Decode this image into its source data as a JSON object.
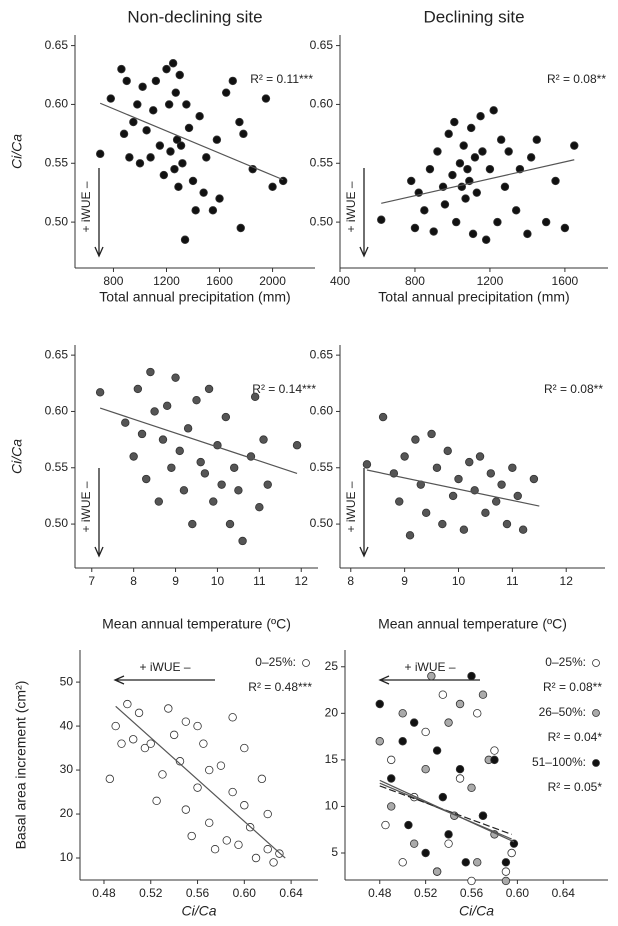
{
  "chart_data": [
    {
      "type": "scatter",
      "title": "Non-declining site",
      "xlabel": "Total annual precipitation (mm)",
      "ylabel": "Ci/Ca",
      "arrow_label": "+ iWUE –",
      "xlim": [
        510,
        2320
      ],
      "ylim": [
        0.461,
        0.659
      ],
      "xticks": [
        800,
        1200,
        1600,
        2000
      ],
      "yticks": [
        {
          "value": 0.5,
          "label": "0.50"
        },
        0.55,
        {
          "value": 0.6,
          "label": "0.60"
        },
        0.65
      ],
      "series": [
        {
          "color": "#111111",
          "r2": "R² = 0.11***",
          "x": [
            700,
            780,
            860,
            880,
            900,
            920,
            950,
            980,
            1000,
            1020,
            1050,
            1080,
            1100,
            1120,
            1150,
            1180,
            1200,
            1220,
            1230,
            1250,
            1260,
            1270,
            1280,
            1290,
            1300,
            1310,
            1320,
            1340,
            1350,
            1370,
            1400,
            1420,
            1450,
            1480,
            1500,
            1550,
            1580,
            1600,
            1650,
            1700,
            1750,
            1760,
            1780,
            1850,
            1950,
            2000,
            2080
          ],
          "y": [
            0.558,
            0.605,
            0.63,
            0.575,
            0.62,
            0.555,
            0.585,
            0.6,
            0.55,
            0.615,
            0.578,
            0.555,
            0.595,
            0.62,
            0.565,
            0.54,
            0.63,
            0.6,
            0.56,
            0.635,
            0.545,
            0.61,
            0.57,
            0.53,
            0.625,
            0.565,
            0.55,
            0.485,
            0.6,
            0.58,
            0.535,
            0.51,
            0.59,
            0.525,
            0.555,
            0.51,
            0.57,
            0.52,
            0.61,
            0.62,
            0.585,
            0.495,
            0.575,
            0.545,
            0.605,
            0.53,
            0.535
          ],
          "fit": {
            "x": [
              700,
              2080
            ],
            "y": [
              0.601,
              0.536
            ]
          }
        }
      ]
    },
    {
      "type": "scatter",
      "title": "Declining site",
      "xlabel": "Total annual precipitation (mm)",
      "arrow_label": "+ iWUE –",
      "xlim": [
        400,
        1830
      ],
      "ylim": [
        0.461,
        0.659
      ],
      "xticks": [
        400,
        800,
        1200,
        1600
      ],
      "yticks": [
        {
          "value": 0.5,
          "label": "0.50"
        },
        0.55,
        {
          "value": 0.6,
          "label": "0.60"
        },
        0.65
      ],
      "series": [
        {
          "color": "#111111",
          "r2": "R² = 0.08**",
          "x": [
            620,
            780,
            800,
            820,
            850,
            880,
            900,
            920,
            950,
            960,
            980,
            1000,
            1010,
            1020,
            1040,
            1050,
            1060,
            1070,
            1080,
            1090,
            1100,
            1110,
            1120,
            1130,
            1150,
            1160,
            1180,
            1200,
            1220,
            1240,
            1260,
            1280,
            1300,
            1340,
            1360,
            1400,
            1420,
            1450,
            1500,
            1550,
            1600,
            1650
          ],
          "y": [
            0.502,
            0.535,
            0.495,
            0.525,
            0.51,
            0.545,
            0.492,
            0.56,
            0.53,
            0.515,
            0.575,
            0.54,
            0.585,
            0.5,
            0.55,
            0.53,
            0.565,
            0.52,
            0.545,
            0.535,
            0.58,
            0.49,
            0.555,
            0.525,
            0.59,
            0.56,
            0.485,
            0.545,
            0.595,
            0.5,
            0.57,
            0.53,
            0.56,
            0.51,
            0.545,
            0.49,
            0.555,
            0.57,
            0.5,
            0.535,
            0.495,
            0.565
          ],
          "fit": {
            "x": [
              620,
              1650
            ],
            "y": [
              0.516,
              0.553
            ]
          }
        }
      ]
    },
    {
      "type": "scatter",
      "xlabel": "Mean annual temperature (ºC)",
      "ylabel": "Ci/Ca",
      "arrow_label": "+ iWUE –",
      "xlim": [
        6.6,
        12.4
      ],
      "ylim": [
        0.461,
        0.659
      ],
      "xticks": [
        7,
        8,
        9,
        10,
        11,
        12
      ],
      "yticks": [
        {
          "value": 0.5,
          "label": "0.50"
        },
        0.55,
        {
          "value": 0.6,
          "label": "0.60"
        },
        0.65
      ],
      "series": [
        {
          "color": "#555555",
          "r2": "R² = 0.14***",
          "x": [
            7.2,
            7.8,
            8.0,
            8.1,
            8.2,
            8.3,
            8.4,
            8.5,
            8.6,
            8.7,
            8.8,
            8.9,
            9.0,
            9.1,
            9.2,
            9.3,
            9.4,
            9.5,
            9.6,
            9.7,
            9.8,
            9.9,
            10.0,
            10.1,
            10.2,
            10.3,
            10.4,
            10.5,
            10.6,
            10.8,
            10.9,
            11.0,
            11.1,
            11.2,
            11.9
          ],
          "y": [
            0.617,
            0.59,
            0.56,
            0.62,
            0.58,
            0.54,
            0.635,
            0.6,
            0.52,
            0.575,
            0.605,
            0.55,
            0.63,
            0.565,
            0.53,
            0.585,
            0.5,
            0.61,
            0.555,
            0.545,
            0.62,
            0.52,
            0.57,
            0.535,
            0.595,
            0.5,
            0.55,
            0.53,
            0.485,
            0.56,
            0.613,
            0.515,
            0.575,
            0.535,
            0.57
          ],
          "fit": {
            "x": [
              7.2,
              11.9
            ],
            "y": [
              0.603,
              0.545
            ]
          }
        }
      ]
    },
    {
      "type": "scatter",
      "xlabel": "Mean annual temperature (ºC)",
      "arrow_label": "+ iWUE –",
      "xlim": [
        7.8,
        12.72
      ],
      "ylim": [
        0.461,
        0.659
      ],
      "xticks": [
        8,
        9,
        10,
        11,
        12
      ],
      "yticks": [
        {
          "value": 0.5,
          "label": "0.50"
        },
        0.55,
        {
          "value": 0.6,
          "label": "0.60"
        },
        0.65
      ],
      "series": [
        {
          "color": "#555555",
          "r2": "R² = 0.08**",
          "x": [
            8.3,
            8.6,
            8.8,
            8.9,
            9.0,
            9.1,
            9.2,
            9.3,
            9.4,
            9.5,
            9.6,
            9.7,
            9.8,
            9.9,
            10.0,
            10.1,
            10.2,
            10.3,
            10.4,
            10.5,
            10.6,
            10.7,
            10.8,
            10.9,
            11.0,
            11.1,
            11.2,
            11.4
          ],
          "y": [
            0.553,
            0.595,
            0.545,
            0.52,
            0.56,
            0.49,
            0.575,
            0.535,
            0.51,
            0.58,
            0.55,
            0.5,
            0.565,
            0.525,
            0.54,
            0.495,
            0.555,
            0.53,
            0.56,
            0.51,
            0.545,
            0.52,
            0.535,
            0.5,
            0.55,
            0.525,
            0.495,
            0.54
          ],
          "fit": {
            "x": [
              8.3,
              11.5
            ],
            "y": [
              0.548,
              0.516
            ]
          }
        }
      ]
    },
    {
      "type": "scatter",
      "xlabel": "Ci/Ca",
      "ylabel": "Basal area increment (cm²)",
      "arrow_label": "+ iWUE –",
      "xlim": [
        0.4595,
        0.663
      ],
      "ylim": [
        5,
        57.3
      ],
      "xticks": [
        0.48,
        0.52,
        0.56,
        {
          "value": 0.6,
          "label": "0.60"
        },
        0.64
      ],
      "yticks": [
        10,
        20,
        30,
        40,
        50
      ],
      "series": [
        {
          "name": "0–25%:",
          "color": "#ffffff",
          "r2": "R² = 0.48***",
          "x": [
            0.485,
            0.49,
            0.495,
            0.5,
            0.505,
            0.51,
            0.515,
            0.52,
            0.525,
            0.53,
            0.535,
            0.54,
            0.545,
            0.55,
            0.55,
            0.555,
            0.56,
            0.56,
            0.565,
            0.57,
            0.57,
            0.575,
            0.58,
            0.585,
            0.59,
            0.59,
            0.595,
            0.6,
            0.6,
            0.605,
            0.61,
            0.615,
            0.62,
            0.62,
            0.625,
            0.63
          ],
          "y": [
            28,
            40,
            36,
            45,
            37,
            43,
            35,
            36,
            23,
            29,
            44,
            38,
            32,
            41,
            21,
            15,
            40,
            26,
            36,
            18,
            30,
            12,
            31,
            14,
            25,
            42,
            13,
            22,
            35,
            17,
            10,
            28,
            12,
            20,
            9,
            11
          ],
          "fit": {
            "x": [
              0.49,
              0.635
            ],
            "y": [
              44.5,
              10
            ]
          }
        }
      ]
    },
    {
      "type": "scatter",
      "xlabel": "Ci/Ca",
      "arrow_label": "+ iWUE –",
      "xlim": [
        0.4497,
        0.679
      ],
      "ylim": [
        2.1,
        26.8
      ],
      "xticks": [
        0.48,
        0.52,
        0.56,
        {
          "value": 0.6,
          "label": "0.60"
        },
        0.64
      ],
      "yticks": [
        5,
        10,
        15,
        20,
        25
      ],
      "series": [
        {
          "name": "0–25%:",
          "color": "#ffffff",
          "r2": "R² = 0.08**",
          "x": [
            0.485,
            0.49,
            0.5,
            0.51,
            0.52,
            0.53,
            0.535,
            0.54,
            0.55,
            0.56,
            0.565,
            0.57,
            0.58,
            0.59,
            0.595
          ],
          "y": [
            8,
            15,
            4,
            11,
            18,
            3,
            22,
            6,
            13,
            2,
            20,
            9,
            16,
            3,
            5
          ],
          "fit": {
            "x": [
              0.48,
              0.595
            ],
            "y": [
              12.5,
              6.5
            ]
          }
        },
        {
          "name": "26–50%:",
          "color": "#aaaaaa",
          "r2": "R² = 0.04*",
          "x": [
            0.48,
            0.49,
            0.5,
            0.51,
            0.52,
            0.525,
            0.53,
            0.54,
            0.545,
            0.55,
            0.56,
            0.565,
            0.57,
            0.575,
            0.58,
            0.59
          ],
          "y": [
            17,
            10,
            20,
            6,
            14,
            24,
            3,
            19,
            9,
            21,
            12,
            4,
            22,
            15,
            7,
            2
          ],
          "fit": {
            "x": [
              0.48,
              0.595
            ],
            "y": [
              12.2,
              7.0
            ]
          },
          "fit_style": "dashed"
        },
        {
          "name": "51–100%:",
          "color": "#111111",
          "r2": "R² = 0.05*",
          "x": [
            0.48,
            0.49,
            0.5,
            0.505,
            0.51,
            0.52,
            0.53,
            0.535,
            0.54,
            0.55,
            0.555,
            0.56,
            0.57,
            0.58,
            0.59,
            0.597
          ],
          "y": [
            21,
            13,
            17,
            8,
            19,
            5,
            16,
            11,
            7,
            14,
            4,
            24,
            9,
            15,
            4,
            6
          ],
          "fit": {
            "x": [
              0.48,
              0.597
            ],
            "y": [
              12.8,
              6.2
            ]
          }
        }
      ]
    }
  ]
}
